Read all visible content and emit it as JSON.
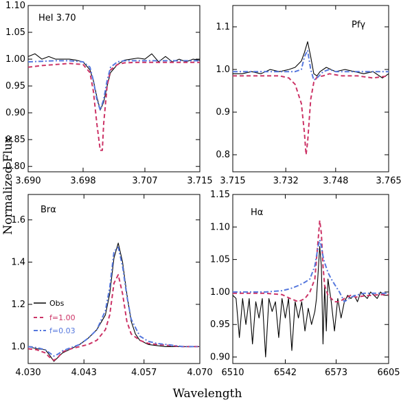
{
  "figure": {
    "ylabel": "Normalized Flux",
    "xlabel": "Wavelength"
  },
  "colors": {
    "obs": "#000000",
    "f100": "#cc3366",
    "f003": "#5577dd"
  },
  "legend": [
    "Obs",
    "f=1.00",
    "f=0.03"
  ],
  "chart_data": [
    {
      "type": "line",
      "title": "HeI 3.70",
      "xlim": [
        3.69,
        3.715
      ],
      "ylim": [
        0.79,
        1.1
      ],
      "xticks": [
        "3.690",
        "3.698",
        "3.707",
        "3.715"
      ],
      "yticks": [
        "0.80",
        "0.85",
        "0.90",
        "0.95",
        "1.00",
        "1.05",
        "1.10"
      ],
      "series": [
        {
          "name": "Obs",
          "x": [
            3.69,
            3.691,
            3.692,
            3.693,
            3.694,
            3.695,
            3.696,
            3.697,
            3.698,
            3.699,
            3.6995,
            3.7,
            3.7005,
            3.701,
            3.7015,
            3.702,
            3.703,
            3.704,
            3.705,
            3.706,
            3.707,
            3.708,
            3.709,
            3.71,
            3.711,
            3.712,
            3.713,
            3.714,
            3.715
          ],
          "y": [
            1.005,
            1.01,
            1.0,
            1.005,
            1.0,
            1.0,
            1.0,
            0.998,
            0.995,
            0.98,
            0.96,
            0.93,
            0.905,
            0.92,
            0.95,
            0.975,
            0.99,
            0.998,
            1.0,
            1.002,
            1.0,
            1.01,
            0.995,
            1.005,
            0.995,
            1.0,
            0.995,
            1.0,
            0.998
          ]
        },
        {
          "name": "f=1.00",
          "x": [
            3.69,
            3.692,
            3.694,
            3.696,
            3.698,
            3.699,
            3.6995,
            3.7,
            3.7005,
            3.7008,
            3.701,
            3.7015,
            3.702,
            3.703,
            3.704,
            3.706,
            3.708,
            3.71,
            3.712,
            3.715
          ],
          "y": [
            0.985,
            0.988,
            0.99,
            0.992,
            0.99,
            0.975,
            0.94,
            0.88,
            0.83,
            0.83,
            0.88,
            0.95,
            0.98,
            0.99,
            0.993,
            0.994,
            0.994,
            0.994,
            0.994,
            0.994
          ]
        },
        {
          "name": "f=0.03",
          "x": [
            3.69,
            3.692,
            3.694,
            3.696,
            3.698,
            3.699,
            3.6995,
            3.7,
            3.7005,
            3.701,
            3.7015,
            3.702,
            3.703,
            3.704,
            3.706,
            3.708,
            3.71,
            3.712,
            3.715
          ],
          "y": [
            0.995,
            0.996,
            0.997,
            0.997,
            0.995,
            0.985,
            0.96,
            0.925,
            0.905,
            0.925,
            0.96,
            0.985,
            0.995,
            0.997,
            0.997,
            0.997,
            0.997,
            0.997,
            0.997
          ]
        }
      ]
    },
    {
      "type": "line",
      "title": "Pfγ",
      "xlim": [
        3.715,
        3.765
      ],
      "ylim": [
        0.76,
        1.15
      ],
      "xticks": [
        "3.715",
        "3.732",
        "3.748",
        "3.765"
      ],
      "yticks": [
        "0.8",
        "0.9",
        "1.0",
        "1.1"
      ],
      "series": [
        {
          "name": "Obs",
          "x": [
            3.715,
            3.718,
            3.721,
            3.724,
            3.727,
            3.73,
            3.733,
            3.735,
            3.737,
            3.738,
            3.739,
            3.74,
            3.741,
            3.742,
            3.743,
            3.745,
            3.748,
            3.751,
            3.754,
            3.757,
            3.76,
            3.763,
            3.765
          ],
          "y": [
            0.99,
            0.99,
            0.995,
            0.99,
            1.0,
            0.995,
            1.0,
            1.005,
            1.02,
            1.04,
            1.065,
            1.03,
            0.99,
            0.985,
            0.995,
            1.005,
            0.995,
            1.0,
            0.995,
            0.99,
            0.995,
            0.98,
            0.99
          ]
        },
        {
          "name": "f=1.00",
          "x": [
            3.715,
            3.72,
            3.725,
            3.73,
            3.733,
            3.735,
            3.737,
            3.738,
            3.7385,
            3.739,
            3.74,
            3.741,
            3.742,
            3.744,
            3.746,
            3.75,
            3.755,
            3.76,
            3.765
          ],
          "y": [
            0.985,
            0.985,
            0.985,
            0.985,
            0.98,
            0.965,
            0.92,
            0.85,
            0.8,
            0.83,
            0.93,
            0.97,
            0.982,
            0.985,
            0.99,
            0.985,
            0.985,
            0.98,
            0.985
          ]
        },
        {
          "name": "f=0.03",
          "x": [
            3.715,
            3.72,
            3.725,
            3.73,
            3.733,
            3.735,
            3.737,
            3.738,
            3.739,
            3.74,
            3.741,
            3.742,
            3.744,
            3.746,
            3.748,
            3.75,
            3.755,
            3.76,
            3.765
          ],
          "y": [
            0.995,
            0.995,
            0.995,
            0.995,
            0.995,
            0.995,
            1.0,
            1.03,
            1.045,
            1.0,
            0.975,
            0.98,
            0.995,
            1.0,
            0.995,
            0.995,
            0.995,
            0.995,
            0.995
          ]
        }
      ]
    },
    {
      "type": "line",
      "title": "Brα",
      "xlim": [
        4.03,
        4.07
      ],
      "ylim": [
        0.92,
        1.72
      ],
      "xticks": [
        "4.030",
        "4.043",
        "4.057",
        "4.070"
      ],
      "yticks": [
        "1.0",
        "1.2",
        "1.4",
        "1.6"
      ],
      "series": [
        {
          "name": "Obs",
          "x": [
            4.03,
            4.032,
            4.034,
            4.035,
            4.036,
            4.037,
            4.038,
            4.04,
            4.042,
            4.044,
            4.046,
            4.048,
            4.049,
            4.05,
            4.051,
            4.052,
            4.053,
            4.054,
            4.055,
            4.056,
            4.058,
            4.06,
            4.062,
            4.064,
            4.066,
            4.068,
            4.07
          ],
          "y": [
            1.0,
            0.99,
            0.985,
            0.96,
            0.93,
            0.95,
            0.97,
            0.99,
            1.01,
            1.04,
            1.08,
            1.15,
            1.25,
            1.42,
            1.49,
            1.4,
            1.25,
            1.12,
            1.06,
            1.03,
            1.01,
            1.005,
            1.0,
            1.0,
            1.0,
            1.0,
            1.0
          ]
        },
        {
          "name": "f=1.00",
          "x": [
            4.03,
            4.032,
            4.034,
            4.035,
            4.036,
            4.037,
            4.038,
            4.04,
            4.042,
            4.044,
            4.046,
            4.048,
            4.049,
            4.05,
            4.051,
            4.052,
            4.053,
            4.054,
            4.056,
            4.058,
            4.06,
            4.063,
            4.066,
            4.07
          ],
          "y": [
            0.99,
            0.985,
            0.97,
            0.95,
            0.935,
            0.95,
            0.975,
            0.99,
            1.0,
            1.01,
            1.03,
            1.08,
            1.15,
            1.3,
            1.34,
            1.25,
            1.12,
            1.06,
            1.03,
            1.015,
            1.01,
            1.005,
            1.0,
            1.0
          ]
        },
        {
          "name": "f=0.03",
          "x": [
            4.03,
            4.032,
            4.034,
            4.035,
            4.036,
            4.037,
            4.038,
            4.04,
            4.042,
            4.044,
            4.046,
            4.048,
            4.049,
            4.05,
            4.051,
            4.052,
            4.053,
            4.054,
            4.056,
            4.058,
            4.06,
            4.063,
            4.066,
            4.07
          ],
          "y": [
            1.0,
            0.995,
            0.985,
            0.97,
            0.955,
            0.965,
            0.98,
            0.995,
            1.01,
            1.04,
            1.08,
            1.17,
            1.28,
            1.45,
            1.47,
            1.38,
            1.24,
            1.13,
            1.05,
            1.025,
            1.015,
            1.008,
            1.0,
            1.0
          ]
        }
      ]
    },
    {
      "type": "line",
      "title": "Hα",
      "xlim": [
        6510,
        6605
      ],
      "ylim": [
        0.89,
        1.15
      ],
      "xticks": [
        "6510",
        "6542",
        "6573",
        "6605"
      ],
      "yticks": [
        "0.90",
        "0.95",
        "1.00",
        "1.05",
        "1.10",
        "1.15"
      ],
      "series": [
        {
          "name": "Obs",
          "x": [
            6510,
            6512,
            6514,
            6516,
            6518,
            6520,
            6522,
            6524,
            6526,
            6528,
            6530,
            6532,
            6534,
            6536,
            6538,
            6540,
            6542,
            6544,
            6546,
            6548,
            6550,
            6552,
            6554,
            6556,
            6558,
            6560,
            6561,
            6562,
            6563,
            6564,
            6565,
            6566,
            6567,
            6568,
            6570,
            6572,
            6574,
            6576,
            6578,
            6580,
            6582,
            6584,
            6586,
            6588,
            6590,
            6592,
            6594,
            6596,
            6598,
            6600,
            6602,
            6605
          ],
          "y": [
            0.995,
            0.99,
            0.93,
            0.99,
            0.95,
            0.99,
            0.92,
            0.985,
            0.96,
            0.99,
            0.9,
            0.99,
            0.97,
            0.985,
            0.93,
            0.99,
            0.96,
            0.99,
            0.91,
            0.985,
            0.96,
            0.985,
            0.94,
            0.975,
            0.95,
            0.97,
            0.99,
            1.03,
            1.07,
            1.04,
            0.92,
            1.01,
            0.94,
            1.02,
            0.985,
            0.94,
            0.99,
            0.96,
            0.985,
            0.995,
            0.99,
            0.995,
            0.985,
            1.0,
            0.995,
            0.99,
            1.0,
            0.995,
            0.99,
            1.0,
            0.995,
            0.995
          ]
        },
        {
          "name": "f=1.00",
          "x": [
            6510,
            6520,
            6530,
            6540,
            6545,
            6550,
            6554,
            6557,
            6560,
            6562,
            6563,
            6564,
            6565,
            6566,
            6568,
            6570,
            6572,
            6575,
            6578,
            6582,
            6585,
            6590,
            6595,
            6600,
            6605
          ],
          "y": [
            0.998,
            0.998,
            0.998,
            0.996,
            0.99,
            0.985,
            0.99,
            1.0,
            1.02,
            1.08,
            1.11,
            1.09,
            1.04,
            1.01,
            0.995,
            0.99,
            0.985,
            0.985,
            0.99,
            0.995,
            0.992,
            0.994,
            0.995,
            0.996,
            0.996
          ]
        },
        {
          "name": "f=0.03",
          "x": [
            6510,
            6520,
            6530,
            6540,
            6545,
            6550,
            6554,
            6557,
            6560,
            6562,
            6563,
            6564,
            6565,
            6566,
            6568,
            6570,
            6572,
            6575,
            6578,
            6582,
            6585,
            6590,
            6595,
            6600,
            6605
          ],
          "y": [
            1.0,
            1.0,
            1.0,
            1.002,
            1.005,
            1.01,
            1.015,
            1.02,
            1.04,
            1.07,
            1.08,
            1.07,
            1.055,
            1.045,
            1.03,
            1.02,
            1.012,
            1.0,
            0.985,
            0.992,
            0.995,
            0.998,
            0.998,
            0.998,
            0.998
          ]
        }
      ]
    }
  ]
}
